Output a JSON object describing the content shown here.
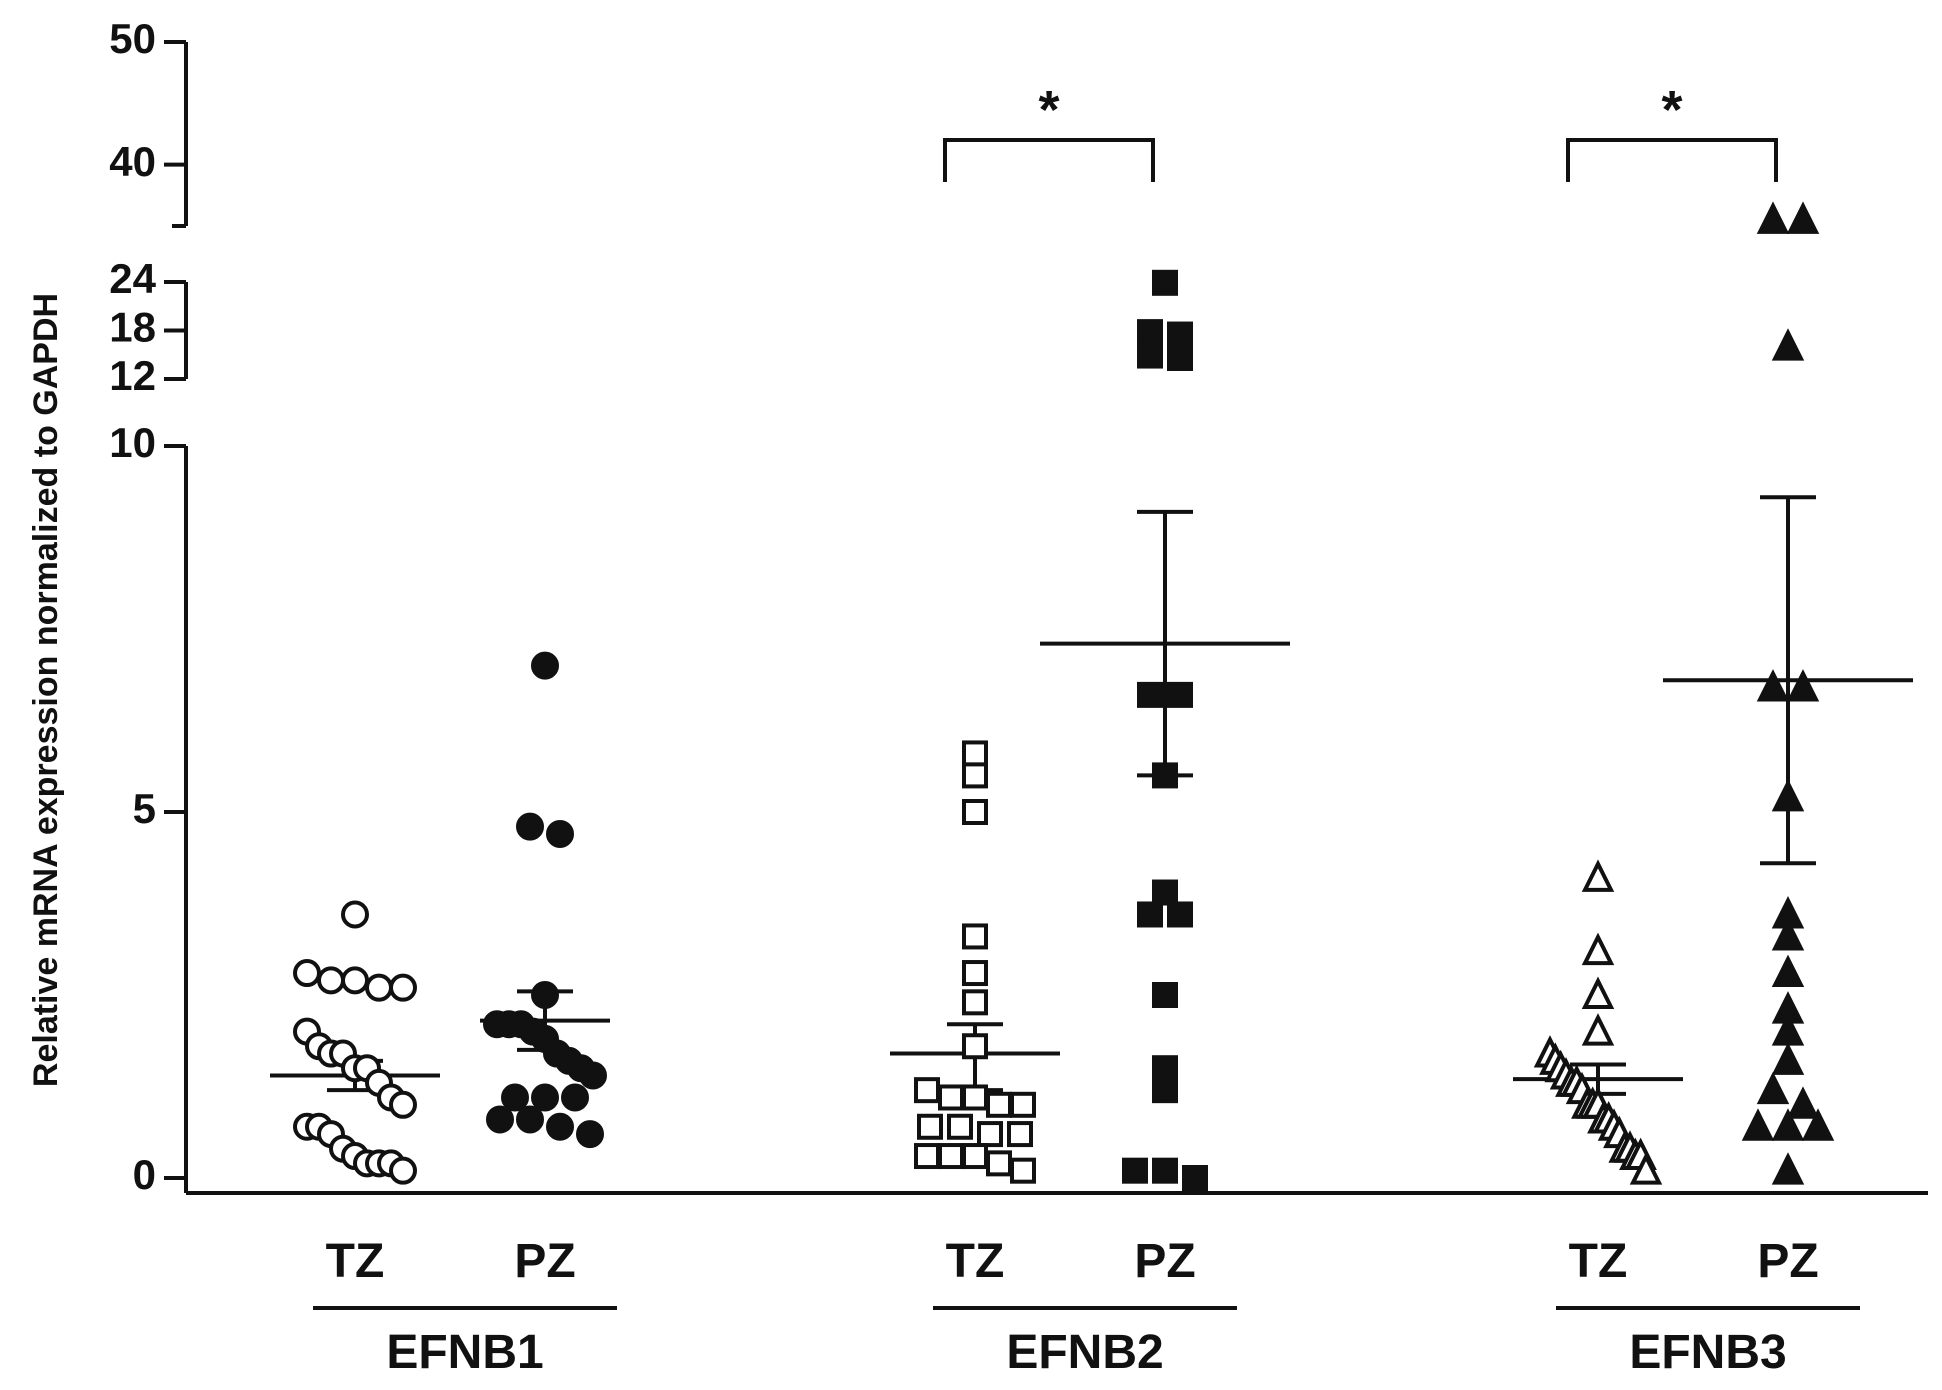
{
  "chart_data": {
    "type": "scatter",
    "ylabel": "Relative mRNA expression normalized to GAPDH",
    "y_axis": {
      "segments": [
        {
          "range": [
            0,
            10
          ],
          "ticks": [
            "0",
            "5",
            "10"
          ]
        },
        {
          "range": [
            12,
            24
          ],
          "ticks": [
            "12",
            "18",
            "24"
          ]
        },
        {
          "range": [
            35,
            50
          ],
          "ticks": [
            "40",
            "50"
          ]
        }
      ]
    },
    "groups": [
      {
        "gene": "EFNB1",
        "series": [
          {
            "category": "TZ",
            "marker": "circle",
            "filled": false,
            "mean": 1.4,
            "sem_low": 1.2,
            "sem_high": 1.6,
            "values": [
              3.6,
              2.8,
              2.7,
              2.6,
              2.6,
              2.7,
              2.0,
              1.8,
              1.7,
              1.7,
              1.5,
              1.5,
              1.1,
              1.3,
              1.0,
              0.7,
              0.7,
              0.6,
              0.4,
              0.3,
              0.2,
              0.2,
              0.1,
              0.2
            ]
          },
          {
            "category": "PZ",
            "marker": "circle",
            "filled": true,
            "mean": 2.15,
            "sem_low": 1.75,
            "sem_high": 2.55,
            "values": [
              7.0,
              4.8,
              4.7,
              2.5,
              2.1,
              2.0,
              1.9,
              2.1,
              2.1,
              1.6,
              1.5,
              1.7,
              1.4,
              1.1,
              1.1,
              1.1,
              0.8,
              0.7,
              0.8,
              0.6
            ]
          }
        ]
      },
      {
        "gene": "EFNB2",
        "significance": "*",
        "series": [
          {
            "category": "TZ",
            "marker": "square",
            "filled": false,
            "mean": 1.7,
            "sem_low": 1.2,
            "sem_high": 2.1,
            "values": [
              5.8,
              5.5,
              5.0,
              3.3,
              2.8,
              2.4,
              1.8,
              1.2,
              1.1,
              1.1,
              1.0,
              1.0,
              0.7,
              0.7,
              0.6,
              0.6,
              0.3,
              0.3,
              0.2,
              0.1,
              0.3
            ]
          },
          {
            "category": "PZ",
            "marker": "square",
            "filled": true,
            "mean": 7.3,
            "sem_low": 5.5,
            "sem_high": 9.1,
            "values": [
              23.9,
              17.5,
              17.8,
              14.6,
              14.9,
              6.6,
              6.6,
              5.5,
              3.9,
              3.6,
              3.6,
              2.5,
              1.5,
              1.2,
              0.1,
              0.0,
              0.1
            ]
          }
        ]
      },
      {
        "gene": "EFNB3",
        "significance": "*",
        "series": [
          {
            "category": "TZ",
            "marker": "triangle",
            "filled": false,
            "mean": 1.35,
            "sem_low": 1.15,
            "sem_high": 1.55,
            "values": [
              4.1,
              3.1,
              2.5,
              2.0,
              1.7,
              1.6,
              1.5,
              1.4,
              1.3,
              1.3,
              1.2,
              1.0,
              1.0,
              1.0,
              0.8,
              0.8,
              0.7,
              0.6,
              0.4,
              0.3,
              0.4,
              0.3,
              0.1
            ]
          },
          {
            "category": "PZ",
            "marker": "triangle",
            "filled": true,
            "mean": 6.8,
            "sem_low": 4.3,
            "sem_high": 9.3,
            "values": [
              35.5,
              35.5,
              16.0,
              6.7,
              6.7,
              5.2,
              3.6,
              3.3,
              2.8,
              2.3,
              2.0,
              1.6,
              1.2,
              1.0,
              0.7,
              0.7,
              0.7,
              0.1
            ]
          }
        ]
      }
    ]
  }
}
